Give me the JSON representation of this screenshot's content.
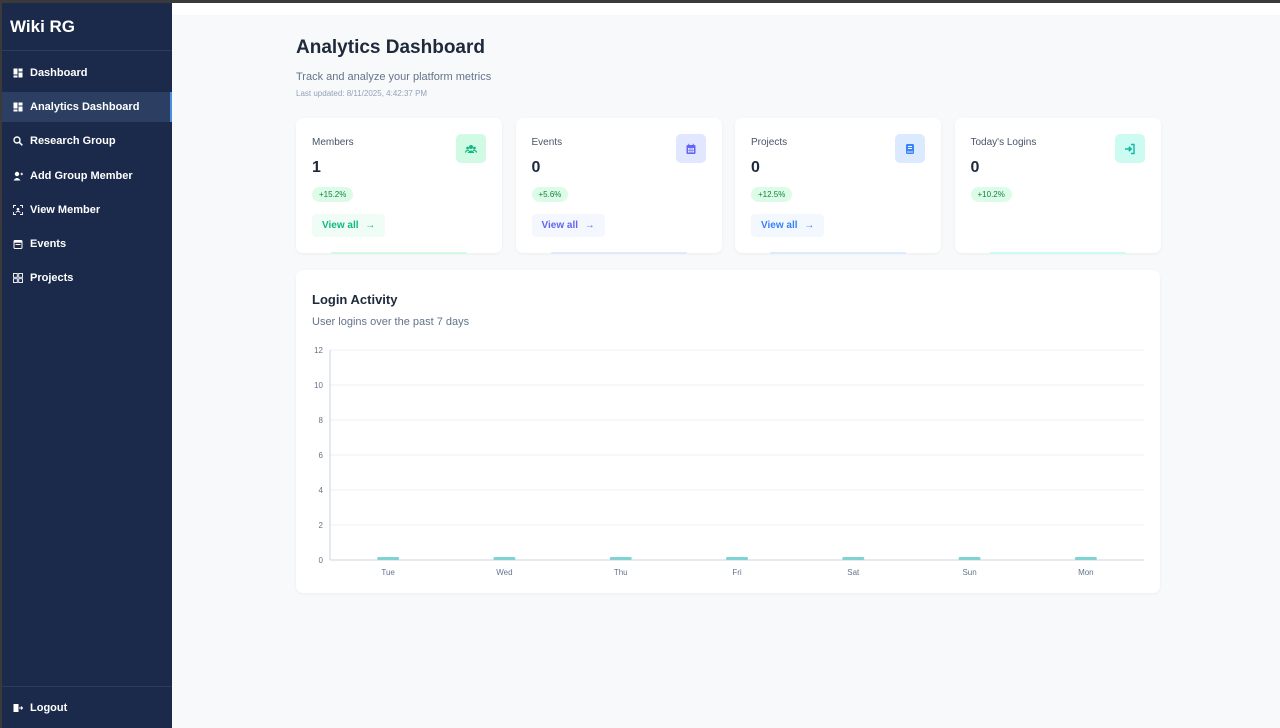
{
  "sidebar": {
    "brand": "Wiki RG",
    "items": [
      {
        "label": "Dashboard",
        "icon": "dashboard-icon",
        "active": false
      },
      {
        "label": "Analytics Dashboard",
        "icon": "dashboard-icon",
        "active": true
      },
      {
        "label": "Research Group",
        "icon": "search-icon",
        "active": false
      },
      {
        "label": "Add Group Member",
        "icon": "user-plus-icon",
        "active": false
      },
      {
        "label": "View Member",
        "icon": "scan-icon",
        "active": false
      },
      {
        "label": "Events",
        "icon": "calendar-icon",
        "active": false
      },
      {
        "label": "Projects",
        "icon": "grid-icon",
        "active": false
      }
    ],
    "logout": "Logout"
  },
  "header": {
    "title": "Analytics Dashboard",
    "subtitle": "Track and analyze your platform metrics",
    "updated": "Last updated: 8/11/2025, 4:42:37 PM"
  },
  "cards": [
    {
      "label": "Members",
      "value": "1",
      "change": "+15.2%",
      "action": "View all",
      "icon": "users-icon",
      "accent": "#10b981",
      "tint": "#d1fae5"
    },
    {
      "label": "Events",
      "value": "0",
      "change": "+5.6%",
      "action": "View all",
      "icon": "calendar-icon",
      "accent": "#6366f1",
      "tint": "#e0e7ff"
    },
    {
      "label": "Projects",
      "value": "0",
      "change": "+12.5%",
      "action": "View all",
      "icon": "book-icon",
      "accent": "#3b82f6",
      "tint": "#dbeafe"
    },
    {
      "label": "Today's Logins",
      "value": "0",
      "change": "+10.2%",
      "action": "",
      "icon": "login-icon",
      "accent": "#14b8a6",
      "tint": "#ccfbf1"
    }
  ],
  "chart": {
    "title": "Login Activity",
    "subtitle": "User logins over the past 7 days"
  },
  "chart_data": {
    "type": "bar",
    "title": "Login Activity",
    "subtitle": "User logins over the past 7 days",
    "categories": [
      "Tue",
      "Wed",
      "Thu",
      "Fri",
      "Sat",
      "Sun",
      "Mon"
    ],
    "values": [
      0,
      0,
      0,
      0,
      0,
      0,
      0
    ],
    "yticks": [
      0,
      2,
      4,
      6,
      8,
      10,
      12
    ],
    "ylim": [
      0,
      12
    ],
    "grid": true,
    "bar_color": "#7fd3d3"
  }
}
